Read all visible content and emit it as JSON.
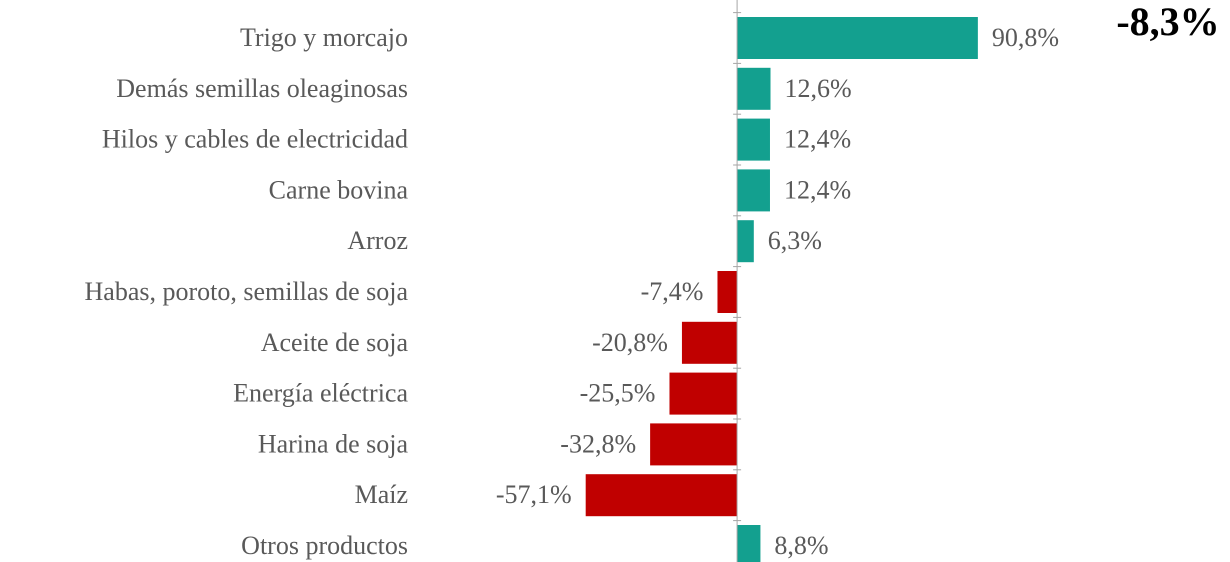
{
  "chart_data": {
    "type": "bar",
    "orientation": "horizontal",
    "annotation": "-8,3%",
    "categories": [
      "Trigo y morcajo",
      "Demás semillas oleaginosas",
      "Hilos y cables de electricidad",
      "Carne bovina",
      "Arroz",
      "Habas, poroto, semillas de soja",
      "Aceite de soja",
      "Energía eléctrica",
      "Harina de soja",
      "Maíz",
      "Otros productos"
    ],
    "values": [
      90.8,
      12.6,
      12.4,
      12.4,
      6.3,
      -7.4,
      -20.8,
      -25.5,
      -32.8,
      -57.1,
      8.8
    ],
    "value_labels": [
      "90,8%",
      "12,6%",
      "12,4%",
      "12,4%",
      "6,3%",
      "-7,4%",
      "-20,8%",
      "-25,5%",
      "-32,8%",
      "-57,1%",
      "8,8%"
    ],
    "color_positive": "#13a08f",
    "color_negative": "#c00000",
    "xlim": [
      -60,
      95
    ]
  }
}
